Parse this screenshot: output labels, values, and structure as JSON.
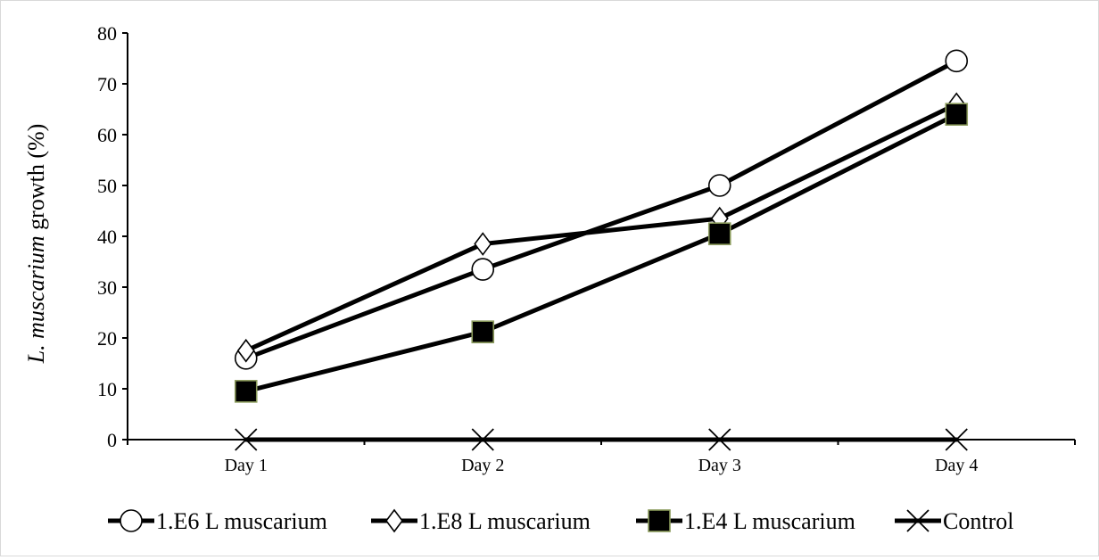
{
  "chart_data": {
    "type": "line",
    "categories": [
      "Day 1",
      "Day 2",
      "Day 3",
      "Day 4"
    ],
    "series": [
      {
        "name": "1.E6 L muscarium",
        "marker": "circle",
        "values": [
          16.0,
          33.5,
          50.0,
          74.5
        ]
      },
      {
        "name": "1.E8 L muscarium",
        "marker": "diamond",
        "values": [
          17.5,
          38.5,
          43.5,
          66.0
        ]
      },
      {
        "name": "1.E4 L muscarium",
        "marker": "square",
        "values": [
          9.5,
          21.2,
          40.5,
          64.0
        ]
      },
      {
        "name": "Control",
        "marker": "x",
        "values": [
          0,
          0,
          0,
          0
        ]
      }
    ],
    "ylabel": {
      "italic": "L. muscarium",
      "rest": " growth (%)"
    },
    "xlabel": "",
    "ylim": [
      0,
      80
    ],
    "yticks": [
      "0",
      "10",
      "20",
      "30",
      "40",
      "50",
      "60",
      "70",
      "80"
    ],
    "grid": false,
    "legend_position": "bottom",
    "colors": {
      "line": "#000000",
      "square_fill": "#000000",
      "square_edge": "#8a9a5b",
      "circle_fill": "#ffffff",
      "diamond_fill": "#ffffff"
    }
  }
}
